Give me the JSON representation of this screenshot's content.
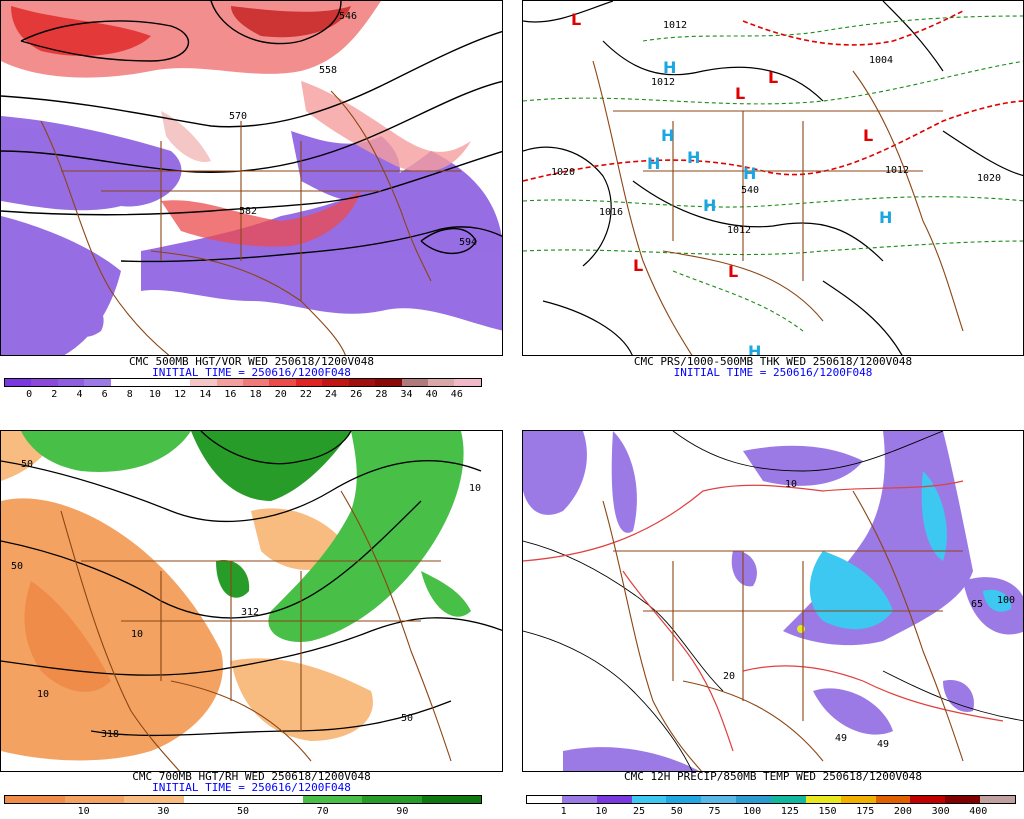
{
  "panels": [
    {
      "id": "p1",
      "title": "CMC 500MB HGT/VOR WED 250618/1200V048",
      "initial": "INITIAL TIME = 250616/1200F048",
      "colors": [
        "#7a38e0",
        "#8c4ad8",
        "#8f5ee0",
        "#9c7ae6",
        "#ffffff",
        "#ffffff",
        "#ffffff",
        "#f4c6c6",
        "#f59e9e",
        "#f07a7a",
        "#ec4b4b",
        "#e02424",
        "#c01616",
        "#a01010",
        "#8a0808",
        "#b07a7a",
        "#d8a8a8",
        "#f0b8c8"
      ],
      "ticks": [
        "0",
        "2",
        "4",
        "6",
        "8",
        "10",
        "12",
        "14",
        "16",
        "18",
        "20",
        "22",
        "24",
        "26",
        "28",
        "34",
        "40",
        "46"
      ],
      "labels": [
        "570",
        "558",
        "582",
        "594",
        "546"
      ]
    },
    {
      "id": "p2",
      "title": "CMC PRS/1000-500MB THK WED 250618/1200V048",
      "initial": "INITIAL TIME = 250616/1200F048",
      "highs": [
        "H",
        "H",
        "H",
        "H",
        "H",
        "H",
        "H",
        "H"
      ],
      "lows": [
        "L",
        "L",
        "L",
        "L",
        "L",
        "L"
      ],
      "labels": [
        "1012",
        "1020",
        "1012",
        "1012",
        "1004",
        "1016",
        "1020",
        "1012",
        "540"
      ]
    },
    {
      "id": "p3",
      "title": "CMC 700MB HGT/RH WED 250618/1200V048",
      "initial": "INITIAL TIME = 250616/1200F048",
      "colors": [
        "#f08c4a",
        "#f4a262",
        "#f8bb80",
        "#ffffff",
        "#ffffff",
        "#48c048",
        "#289c28",
        "#107810"
      ],
      "ticks": [
        "10",
        "30",
        "50",
        "70",
        "90"
      ],
      "labels": [
        "50",
        "10",
        "312",
        "318",
        "50",
        "10",
        "50",
        "10"
      ]
    },
    {
      "id": "p4",
      "title": "CMC 12H PRECIP/850MB TEMP WED 250618/1200V048",
      "initial": "",
      "colors": [
        "#ffffff",
        "#9c7ae6",
        "#7a38e0",
        "#3cc8f0",
        "#22a8e0",
        "#58b8e8",
        "#2c9cd0",
        "#10b8a0",
        "#e8e820",
        "#f0b000",
        "#e06000",
        "#c00000",
        "#800000",
        "#c0a0a0"
      ],
      "ticks": [
        "1",
        "10",
        "25",
        "50",
        "75",
        "100",
        "125",
        "150",
        "175",
        "200",
        "300",
        "400"
      ],
      "labels": [
        "49",
        "49",
        "65",
        "100",
        "10",
        "20"
      ]
    }
  ]
}
